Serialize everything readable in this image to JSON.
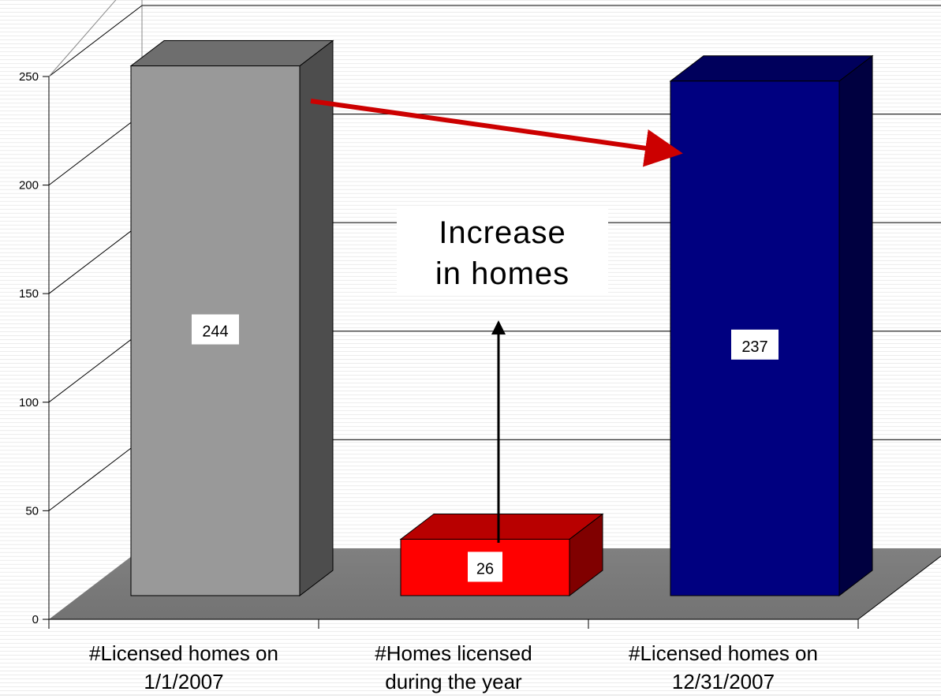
{
  "chart_data": {
    "type": "bar",
    "categories": [
      [
        "#Licensed homes on",
        "1/1/2007"
      ],
      [
        "#Homes licensed",
        "during the year"
      ],
      [
        "#Licensed homes on",
        "12/31/2007"
      ]
    ],
    "values": [
      244,
      26,
      237
    ],
    "data_labels": [
      "244",
      "26",
      "237"
    ],
    "bar_colors": [
      "#999999",
      "#ff0000",
      "#000080"
    ],
    "yticks": [
      "0",
      "50",
      "100",
      "150",
      "200",
      "250"
    ],
    "ylim": [
      0,
      250
    ],
    "grid": true,
    "three_d": true,
    "annotation": [
      "Increase",
      "in homes"
    ],
    "colors": {
      "floor": "#808080",
      "arrow_red": "#cc0000",
      "arrow_black": "#000000"
    }
  }
}
